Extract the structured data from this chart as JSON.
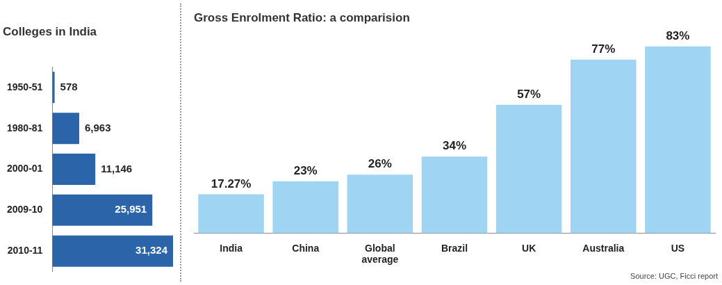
{
  "chart_data": [
    {
      "type": "bar",
      "title": "Colleges in India",
      "orientation": "horizontal",
      "categories": [
        "1950-51",
        "1980-81",
        "2000-01",
        "2009-10",
        "2010-11"
      ],
      "values": [
        578,
        6963,
        11146,
        25951,
        31324
      ],
      "value_labels": [
        "578",
        "6,963",
        "11,146",
        "25,951",
        "31,324"
      ],
      "color": "#2b64a8",
      "legend": false
    },
    {
      "type": "bar",
      "title": "Gross Enrolment Ratio: a comparision",
      "categories": [
        "India",
        "China",
        "Global average",
        "Brazil",
        "UK",
        "Australia",
        "US"
      ],
      "values": [
        17.27,
        23,
        26,
        34,
        57,
        77,
        83
      ],
      "value_labels": [
        "17.27%",
        "23%",
        "26%",
        "34%",
        "57%",
        "77%",
        "83%"
      ],
      "color": "#9fd4f2",
      "legend": false,
      "annotations": [
        "Source: UGC, Ficci report"
      ]
    }
  ]
}
